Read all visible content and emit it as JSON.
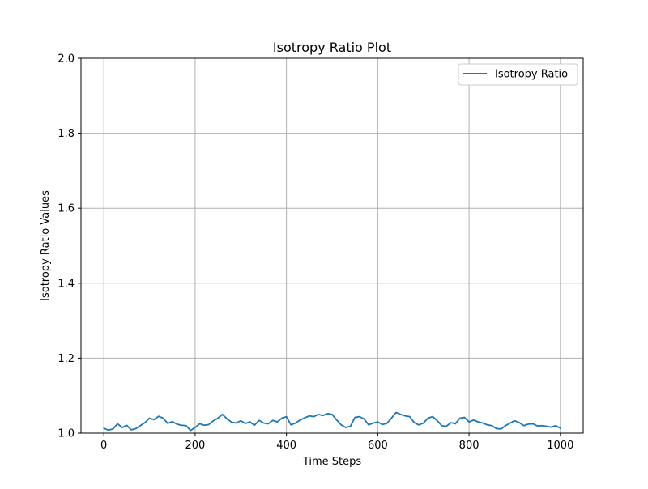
{
  "chart_data": {
    "type": "line",
    "title": "Isotropy Ratio Plot",
    "xlabel": "Time Steps",
    "ylabel": "Isotropy Ratio Values",
    "xlim": [
      -50,
      1050
    ],
    "ylim": [
      1.0,
      2.0
    ],
    "xticks": [
      0,
      200,
      400,
      600,
      800,
      1000
    ],
    "xtick_labels": [
      "0",
      "200",
      "400",
      "600",
      "800",
      "1000"
    ],
    "yticks": [
      1.0,
      1.2,
      1.4,
      1.6,
      1.8,
      2.0
    ],
    "ytick_labels": [
      "1.0",
      "1.2",
      "1.4",
      "1.6",
      "1.8",
      "2.0"
    ],
    "grid": true,
    "legend_position": "top-right",
    "series": [
      {
        "name": "Isotropy Ratio",
        "color": "#1f77b4",
        "x": [
          0,
          10,
          20,
          30,
          40,
          50,
          60,
          70,
          80,
          90,
          100,
          110,
          120,
          130,
          140,
          150,
          160,
          170,
          180,
          190,
          200,
          210,
          220,
          230,
          240,
          250,
          260,
          270,
          280,
          290,
          300,
          310,
          320,
          330,
          340,
          350,
          360,
          370,
          380,
          390,
          400,
          410,
          420,
          430,
          440,
          450,
          460,
          470,
          480,
          490,
          500,
          510,
          520,
          530,
          540,
          550,
          560,
          570,
          580,
          590,
          600,
          610,
          620,
          630,
          640,
          650,
          660,
          670,
          680,
          690,
          700,
          710,
          720,
          730,
          740,
          750,
          760,
          770,
          780,
          790,
          800,
          810,
          820,
          830,
          840,
          850,
          860,
          870,
          880,
          890,
          900,
          910,
          920,
          930,
          940,
          950,
          960,
          970,
          980,
          990,
          1000
        ],
        "y": [
          1.013,
          1.008,
          1.011,
          1.025,
          1.015,
          1.021,
          1.009,
          1.012,
          1.02,
          1.028,
          1.04,
          1.036,
          1.045,
          1.04,
          1.026,
          1.031,
          1.024,
          1.021,
          1.02,
          1.007,
          1.015,
          1.025,
          1.021,
          1.023,
          1.033,
          1.04,
          1.05,
          1.038,
          1.029,
          1.027,
          1.033,
          1.026,
          1.03,
          1.021,
          1.034,
          1.027,
          1.025,
          1.034,
          1.03,
          1.04,
          1.044,
          1.022,
          1.027,
          1.035,
          1.041,
          1.046,
          1.044,
          1.05,
          1.047,
          1.052,
          1.05,
          1.035,
          1.022,
          1.015,
          1.018,
          1.042,
          1.044,
          1.038,
          1.022,
          1.027,
          1.03,
          1.023,
          1.026,
          1.04,
          1.055,
          1.05,
          1.046,
          1.044,
          1.028,
          1.022,
          1.027,
          1.04,
          1.044,
          1.034,
          1.02,
          1.018,
          1.028,
          1.025,
          1.04,
          1.042,
          1.03,
          1.035,
          1.03,
          1.027,
          1.022,
          1.02,
          1.012,
          1.011,
          1.02,
          1.027,
          1.033,
          1.028,
          1.02,
          1.024,
          1.025,
          1.019,
          1.02,
          1.018,
          1.016,
          1.02,
          1.013
        ]
      }
    ]
  }
}
